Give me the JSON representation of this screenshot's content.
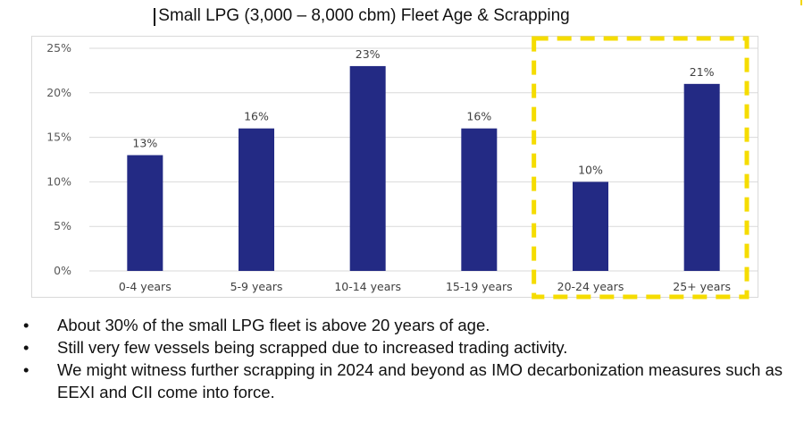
{
  "title": "Small LPG (3,000 – 8,000 cbm) Fleet Age & Scrapping",
  "colors": {
    "bar": "#232a84",
    "highlight_box": "#f5dc00",
    "grid": "#d9d9d9"
  },
  "chart_data": {
    "type": "bar",
    "title": "Small LPG (3,000 – 8,000 cbm) Fleet Age & Scrapping",
    "categories": [
      "0-4 years",
      "5-9 years",
      "10-14 years",
      "15-19 years",
      "20-24 years",
      "25+ years"
    ],
    "values": [
      13,
      16,
      23,
      16,
      10,
      21
    ],
    "value_labels": [
      "13%",
      "16%",
      "23%",
      "16%",
      "10%",
      "21%"
    ],
    "ytick_labels": [
      "0%",
      "5%",
      "10%",
      "15%",
      "20%",
      "25%"
    ],
    "ylim": [
      0,
      25
    ],
    "xlabel": "",
    "ylabel": "",
    "grid": true,
    "highlight_categories": [
      "20-24 years",
      "25+ years"
    ]
  },
  "bullets": [
    "About 30% of the small LPG fleet is above 20 years of age.",
    "Still very few vessels being scrapped due to increased trading activity.",
    "We might witness further scrapping in 2024 and beyond as IMO decarbonization measures such as EEXI and CII come into force."
  ],
  "bullet_symbol": "•"
}
